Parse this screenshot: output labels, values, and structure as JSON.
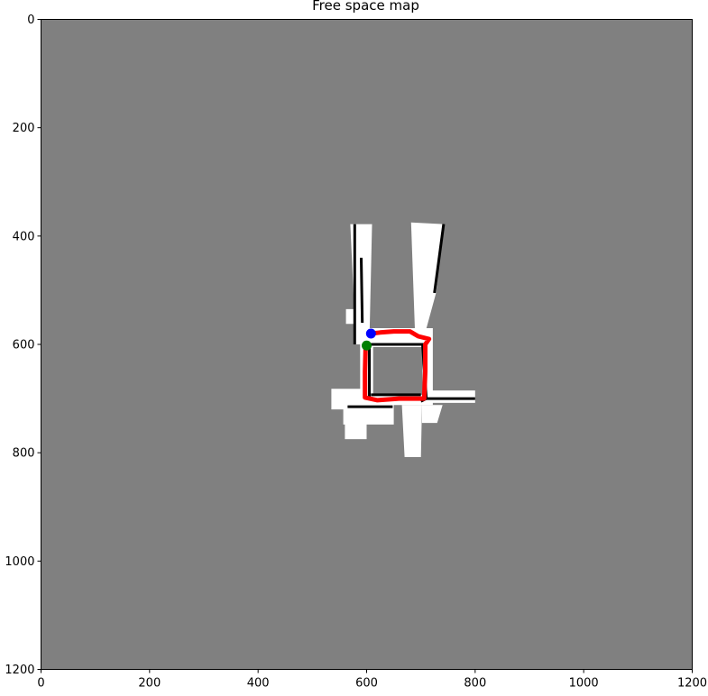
{
  "chart_data": {
    "type": "heatmap",
    "title": "Free space map",
    "xlabel": "",
    "ylabel": "",
    "xlim": [
      0,
      1200
    ],
    "ylim": [
      1200,
      0
    ],
    "x_ticks": [
      0,
      200,
      400,
      600,
      800,
      1000,
      1200
    ],
    "y_ticks": [
      0,
      200,
      400,
      600,
      800,
      1000,
      1200
    ],
    "grid": false,
    "colors": {
      "unknown": "#808080",
      "free": "#ffffff",
      "obstacle": "#000000",
      "path": "#ff0000",
      "start": "#0000ff",
      "goal": "#008000"
    },
    "free_regions": [
      {
        "x": [
          [
            570,
            378
          ],
          [
            610,
            378
          ],
          [
            605,
            600
          ],
          [
            580,
            600
          ]
        ]
      },
      {
        "x": [
          [
            682,
            375
          ],
          [
            742,
            378
          ],
          [
            728,
            505
          ],
          [
            702,
            600
          ],
          [
            690,
            600
          ]
        ]
      },
      {
        "x": [
          [
            562,
            535
          ],
          [
            595,
            535
          ],
          [
            595,
            562
          ],
          [
            562,
            562
          ]
        ]
      },
      {
        "x": [
          [
            588,
            570
          ],
          [
            722,
            570
          ],
          [
            722,
            712
          ],
          [
            588,
            712
          ]
        ]
      },
      {
        "x": [
          [
            535,
            682
          ],
          [
            600,
            682
          ],
          [
            600,
            720
          ],
          [
            535,
            720
          ]
        ]
      },
      {
        "x": [
          [
            700,
            685
          ],
          [
            800,
            685
          ],
          [
            800,
            708
          ],
          [
            700,
            708
          ]
        ]
      },
      {
        "x": [
          [
            557,
            710
          ],
          [
            650,
            710
          ],
          [
            650,
            748
          ],
          [
            557,
            748
          ]
        ]
      },
      {
        "x": [
          [
            560,
            740
          ],
          [
            600,
            740
          ],
          [
            600,
            775
          ],
          [
            560,
            775
          ]
        ]
      },
      {
        "x": [
          [
            665,
            712
          ],
          [
            702,
            712
          ],
          [
            700,
            808
          ],
          [
            670,
            808
          ]
        ]
      },
      {
        "x": [
          [
            702,
            712
          ],
          [
            740,
            712
          ],
          [
            730,
            745
          ],
          [
            702,
            745
          ]
        ]
      }
    ],
    "unknown_regions": [
      {
        "x": [
          [
            612,
            605
          ],
          [
            703,
            605
          ],
          [
            703,
            693
          ],
          [
            612,
            693
          ]
        ]
      }
    ],
    "obstacle_walls": [
      {
        "x": [
          [
            605,
            600
          ],
          [
            705,
            600
          ],
          [
            705,
            605
          ]
        ]
      },
      {
        "x": [
          [
            605,
            600
          ],
          [
            605,
            700
          ],
          [
            610,
            700
          ]
        ]
      },
      {
        "x": [
          [
            703,
            600
          ],
          [
            710,
            700
          ],
          [
            700,
            705
          ]
        ]
      },
      {
        "x": [
          [
            608,
            693
          ],
          [
            700,
            693
          ]
        ]
      },
      {
        "x": [
          [
            578,
            378
          ],
          [
            578,
            600
          ]
        ]
      },
      {
        "x": [
          [
            742,
            378
          ],
          [
            725,
            505
          ]
        ]
      },
      {
        "x": [
          [
            565,
            715
          ],
          [
            648,
            715
          ]
        ]
      },
      {
        "x": [
          [
            700,
            700
          ],
          [
            800,
            700
          ]
        ]
      },
      {
        "x": [
          [
            590,
            440
          ],
          [
            592,
            560
          ]
        ]
      }
    ],
    "path": [
      [
        608,
        580
      ],
      [
        625,
        578
      ],
      [
        650,
        576
      ],
      [
        680,
        576
      ],
      [
        695,
        585
      ],
      [
        715,
        590
      ],
      [
        708,
        600
      ],
      [
        708,
        650
      ],
      [
        706,
        700
      ],
      [
        690,
        700
      ],
      [
        660,
        700
      ],
      [
        620,
        703
      ],
      [
        597,
        698
      ],
      [
        597,
        650
      ],
      [
        598,
        610
      ],
      [
        600,
        600
      ]
    ],
    "markers": [
      {
        "name": "start",
        "x": 608,
        "y": 580,
        "color": "#0000ff"
      },
      {
        "name": "goal",
        "x": 600,
        "y": 602,
        "color": "#008000"
      }
    ]
  }
}
